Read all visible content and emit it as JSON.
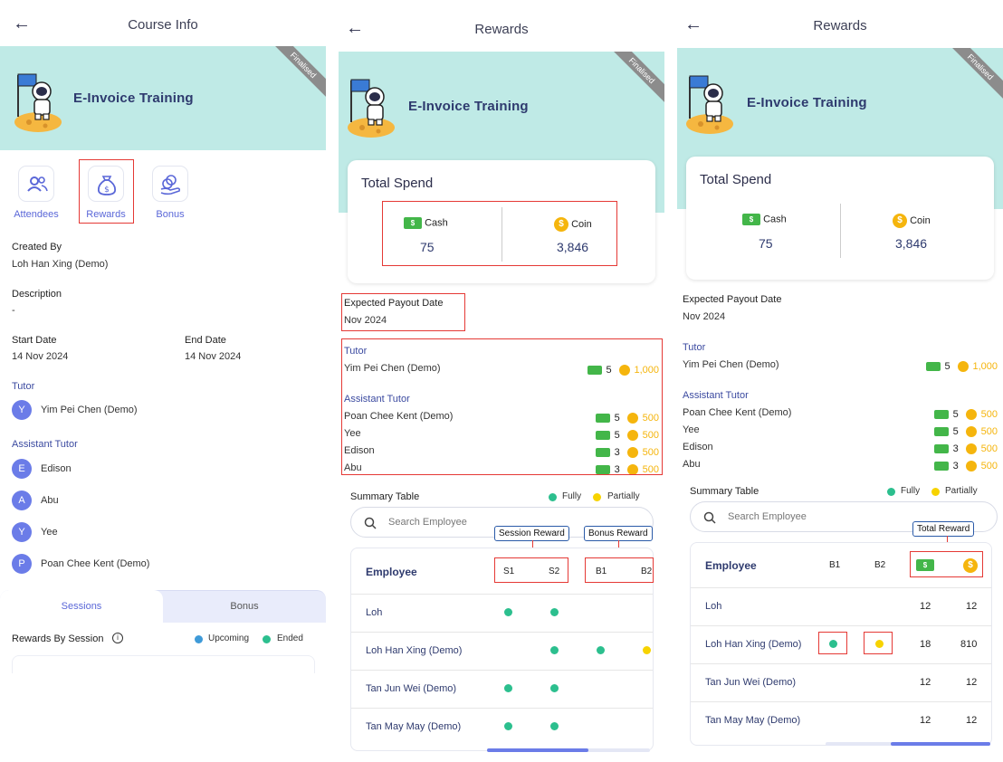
{
  "screen1": {
    "title": "Course Info",
    "banner_title": "E-Invoice Training",
    "ribbon": "Finalised",
    "icons": {
      "attendees": "Attendees",
      "rewards": "Rewards",
      "bonus": "Bonus"
    },
    "created_by_label": "Created By",
    "created_by": "Loh Han Xing (Demo)",
    "description_label": "Description",
    "description": "-",
    "start_label": "Start Date",
    "start": "14 Nov 2024",
    "end_label": "End Date",
    "end": "14 Nov 2024",
    "tutor_label": "Tutor",
    "tutor": {
      "initial": "Y",
      "name": "Yim Pei Chen (Demo)"
    },
    "assistant_label": "Assistant Tutor",
    "assistants": [
      {
        "initial": "E",
        "name": "Edison"
      },
      {
        "initial": "A",
        "name": "Abu"
      },
      {
        "initial": "Y",
        "name": "Yee"
      },
      {
        "initial": "P",
        "name": "Poan Chee Kent (Demo)"
      }
    ],
    "tabs": {
      "sessions": "Sessions",
      "bonus": "Bonus"
    },
    "rewards_by_session": "Rewards By Session",
    "legend_upcoming": "Upcoming",
    "legend_ended": "Ended"
  },
  "screen2": {
    "title": "Rewards",
    "banner_title": "E-Invoice Training",
    "ribbon": "Finalised",
    "total_spend": "Total Spend",
    "cash_label": "Cash",
    "cash_value": "75",
    "coin_label": "Coin",
    "coin_value": "3,846",
    "payout_label": "Expected Payout Date",
    "payout": "Nov 2024",
    "tutor_label": "Tutor",
    "tutor": {
      "name": "Yim Pei Chen (Demo)",
      "cash": "5",
      "coin": "1,000"
    },
    "assistant_label": "Assistant Tutor",
    "assistants": [
      {
        "name": "Poan Chee Kent (Demo)",
        "cash": "5",
        "coin": "500"
      },
      {
        "name": "Yee",
        "cash": "5",
        "coin": "500"
      },
      {
        "name": "Edison",
        "cash": "3",
        "coin": "500"
      },
      {
        "name": "Abu",
        "cash": "3",
        "coin": "500"
      }
    ],
    "summary_label": "Summary Table",
    "fully": "Fully",
    "partially": "Partially",
    "search_placeholder": "Search Employee",
    "tip_session": "Session Reward",
    "tip_bonus": "Bonus Reward",
    "header_employee": "Employee",
    "cols": [
      "S1",
      "S2",
      "B1",
      "B2"
    ],
    "rows": [
      {
        "name": "Loh"
      },
      {
        "name": "Loh Han Xing (Demo)"
      },
      {
        "name": "Tan Jun Wei (Demo)"
      },
      {
        "name": "Tan May May (Demo)"
      }
    ]
  },
  "screen3": {
    "title": "Rewards",
    "banner_title": "E-Invoice Training",
    "ribbon": "Finalised",
    "total_spend": "Total Spend",
    "cash_label": "Cash",
    "cash_value": "75",
    "coin_label": "Coin",
    "coin_value": "3,846",
    "payout_label": "Expected Payout Date",
    "payout": "Nov 2024",
    "tutor_label": "Tutor",
    "tutor": {
      "name": "Yim Pei Chen (Demo)",
      "cash": "5",
      "coin": "1,000"
    },
    "assistant_label": "Assistant Tutor",
    "assistants": [
      {
        "name": "Poan Chee Kent (Demo)",
        "cash": "5",
        "coin": "500"
      },
      {
        "name": "Yee",
        "cash": "5",
        "coin": "500"
      },
      {
        "name": "Edison",
        "cash": "3",
        "coin": "500"
      },
      {
        "name": "Abu",
        "cash": "3",
        "coin": "500"
      }
    ],
    "summary_label": "Summary Table",
    "fully": "Fully",
    "partially": "Partially",
    "search_placeholder": "Search Employee",
    "tip_total": "Total Reward",
    "header_employee": "Employee",
    "cols": [
      "B1",
      "B2"
    ],
    "rows": [
      {
        "name": "Loh",
        "cash": "12",
        "coin": "12"
      },
      {
        "name": "Loh Han Xing (Demo)",
        "cash": "18",
        "coin": "810"
      },
      {
        "name": "Tan Jun Wei (Demo)",
        "cash": "12",
        "coin": "12"
      },
      {
        "name": "Tan May May (Demo)",
        "cash": "12",
        "coin": "12"
      }
    ]
  },
  "colors": {
    "accent": "#5a67d8",
    "banner": "#bfeae6",
    "highlight": "#e53935",
    "fully": "#2cbf8e",
    "partially": "#f7d300",
    "upcoming": "#3e9ad8"
  }
}
